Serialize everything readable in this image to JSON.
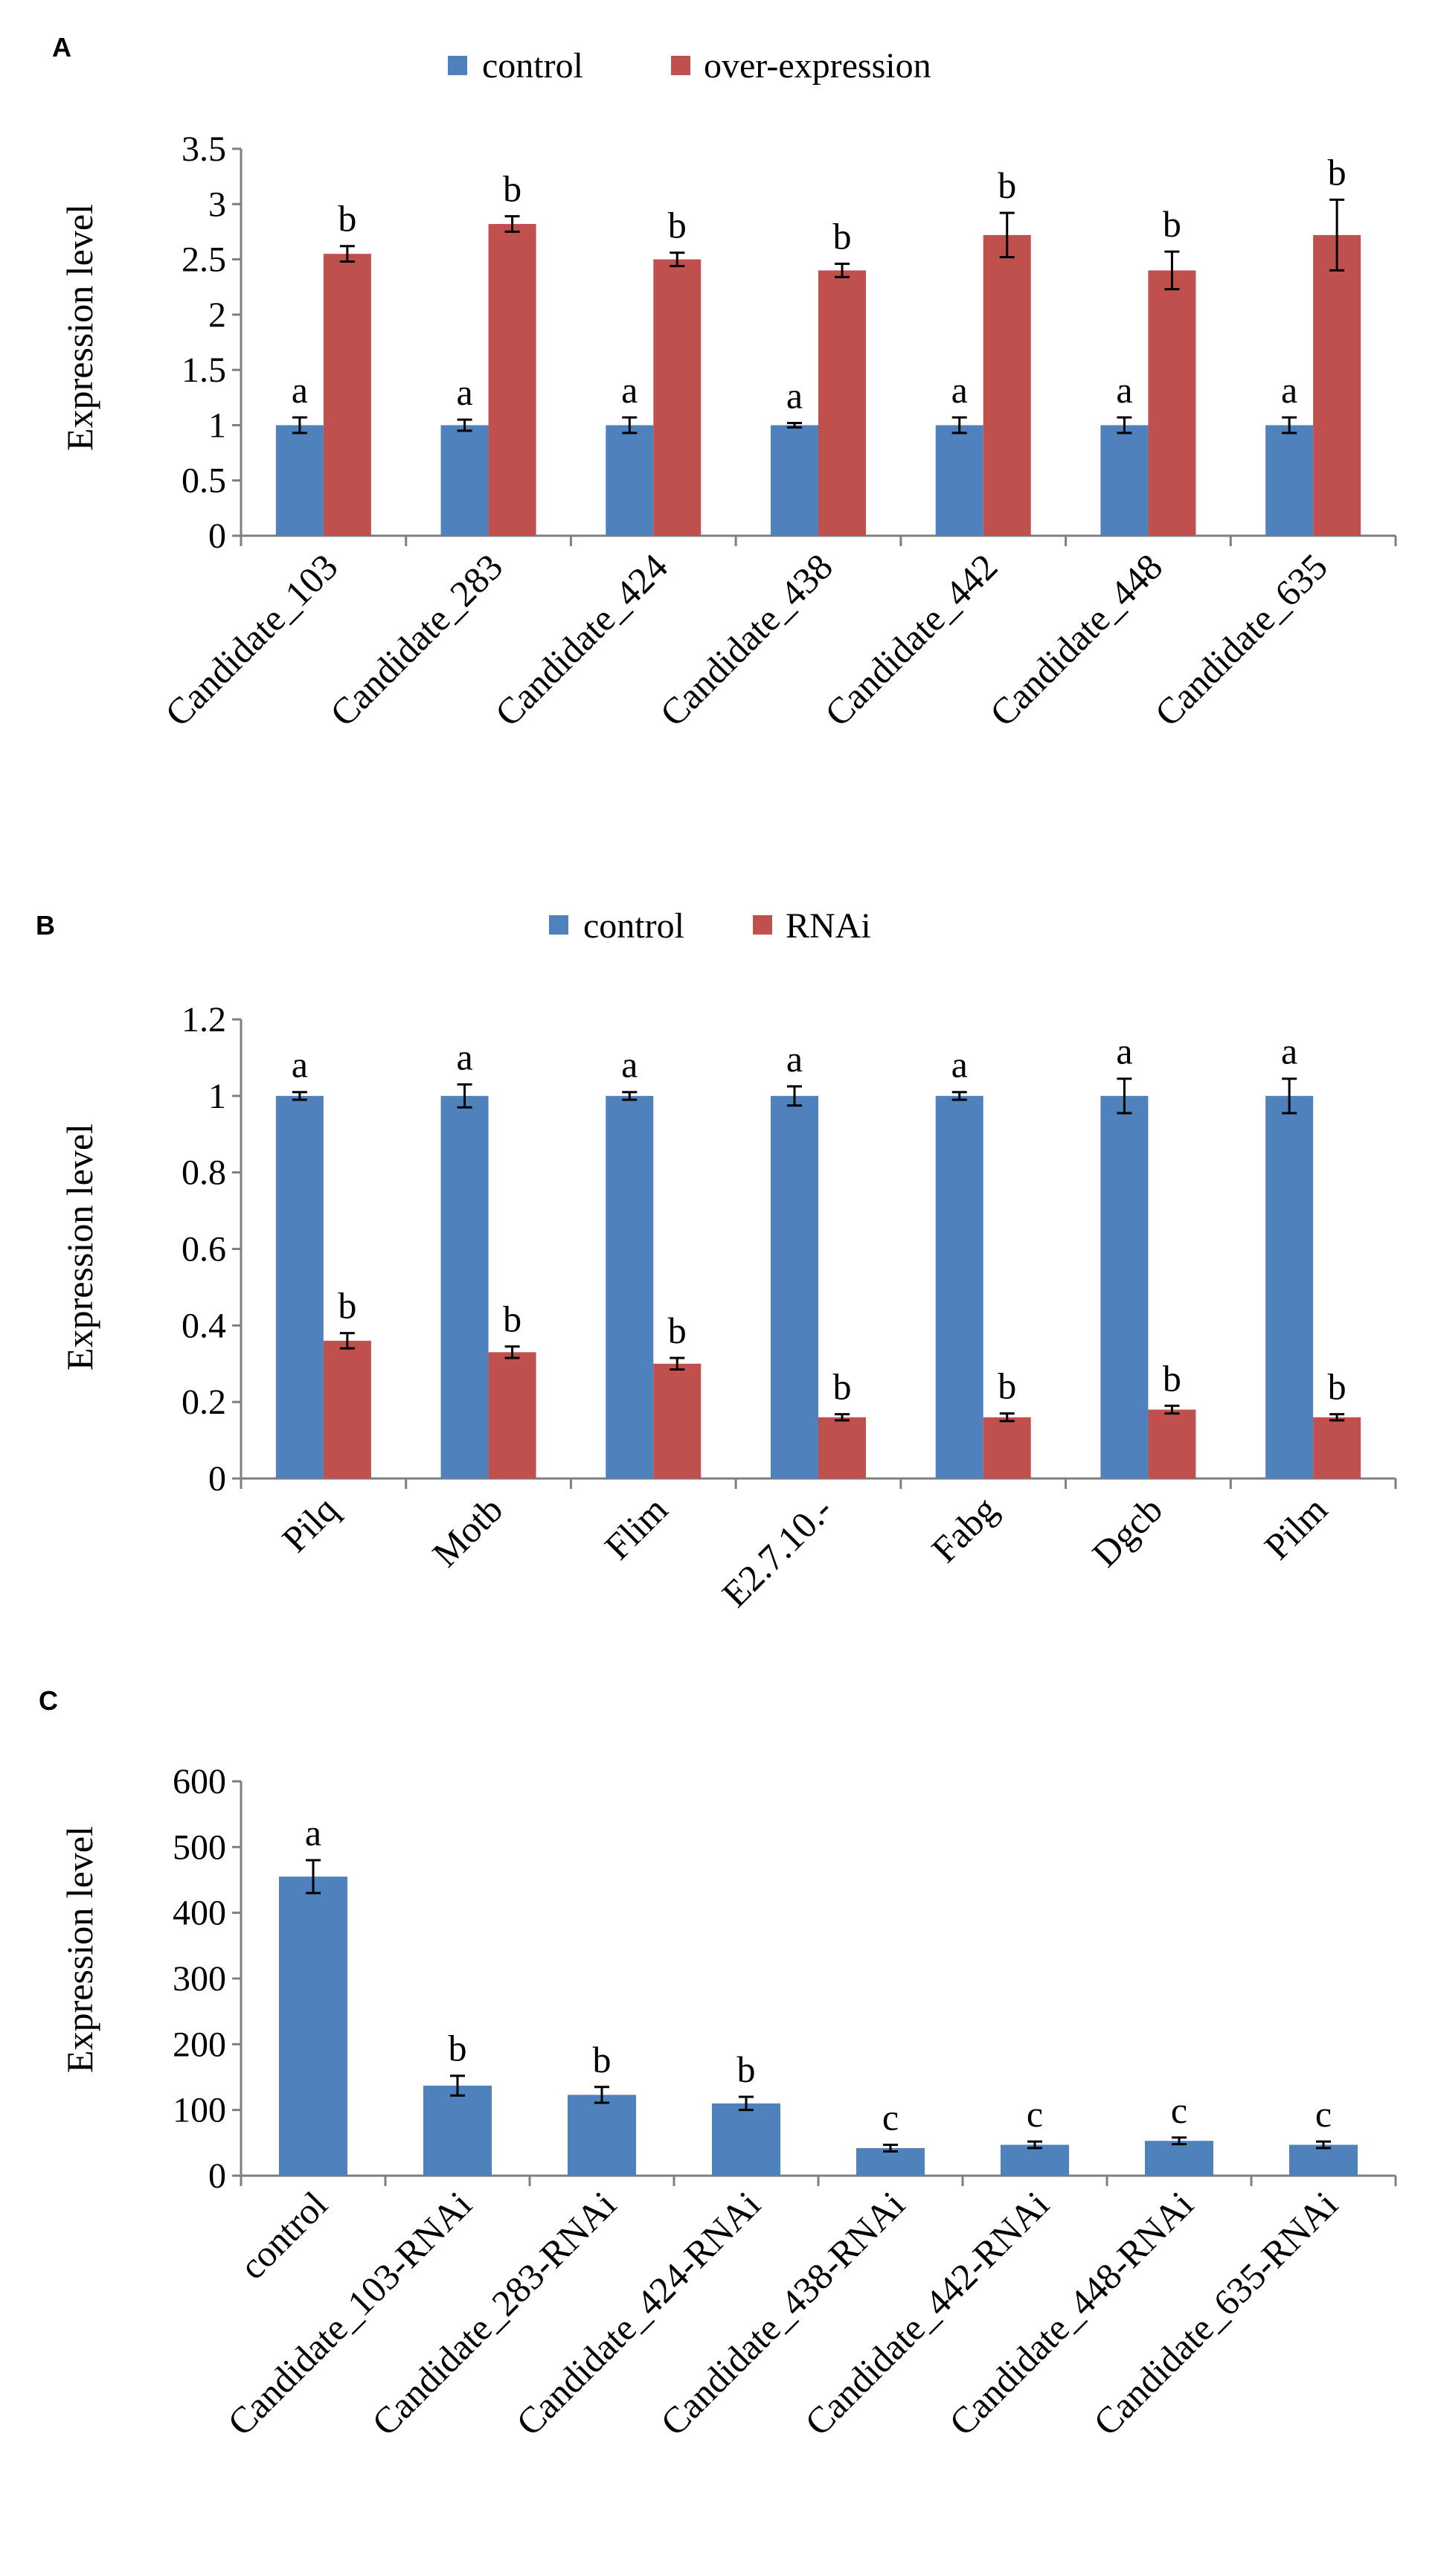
{
  "colors": {
    "control": "#4f81bd",
    "treatment": "#c0504d",
    "axis": "#7f7f7f",
    "text": "#000000"
  },
  "chart_data": [
    {
      "panel": "A",
      "type": "bar",
      "ylabel": "Expression level",
      "ylim": [
        0,
        3.5
      ],
      "yticks": [
        "0",
        "0.5",
        "1",
        "1.5",
        "2",
        "2.5",
        "3",
        "3.5"
      ],
      "categories": [
        "Candidate_103",
        "Candidate_283",
        "Candidate_424",
        "Candidate_438",
        "Candidate_442",
        "Candidate_448",
        "Candidate_635"
      ],
      "legend_position": "top-center",
      "series": [
        {
          "name": "control",
          "color": "#4f81bd",
          "values": [
            1.0,
            1.0,
            1.0,
            1.0,
            1.0,
            1.0,
            1.0
          ],
          "errors": [
            0.07,
            0.05,
            0.07,
            0.02,
            0.07,
            0.07,
            0.07
          ],
          "labels": [
            "a",
            "a",
            "a",
            "a",
            "a",
            "a",
            "a"
          ]
        },
        {
          "name": "over-expression",
          "color": "#c0504d",
          "values": [
            2.55,
            2.82,
            2.5,
            2.4,
            2.72,
            2.4,
            2.72
          ],
          "errors": [
            0.07,
            0.07,
            0.06,
            0.06,
            0.2,
            0.17,
            0.32
          ],
          "labels": [
            "b",
            "b",
            "b",
            "b",
            "b",
            "b",
            "b"
          ]
        }
      ]
    },
    {
      "panel": "B",
      "type": "bar",
      "ylabel": "Expression level",
      "ylim": [
        0,
        1.2
      ],
      "yticks": [
        "0",
        "0.2",
        "0.4",
        "0.6",
        "0.8",
        "1",
        "1.2"
      ],
      "categories": [
        "Pilq",
        "Motb",
        "Flim",
        "E2.7.10.-",
        "Fabg",
        "Dgcb",
        "Pilm"
      ],
      "legend_position": "top-center",
      "series": [
        {
          "name": "control",
          "color": "#4f81bd",
          "values": [
            1.0,
            1.0,
            1.0,
            1.0,
            1.0,
            1.0,
            1.0
          ],
          "errors": [
            0.01,
            0.03,
            0.01,
            0.025,
            0.01,
            0.045,
            0.045
          ],
          "labels": [
            "a",
            "a",
            "a",
            "a",
            "a",
            "a",
            "a"
          ]
        },
        {
          "name": "RNAi",
          "color": "#c0504d",
          "values": [
            0.36,
            0.33,
            0.3,
            0.16,
            0.16,
            0.18,
            0.16
          ],
          "errors": [
            0.02,
            0.015,
            0.015,
            0.008,
            0.01,
            0.01,
            0.008
          ],
          "labels": [
            "b",
            "b",
            "b",
            "b",
            "b",
            "b",
            "b"
          ]
        }
      ]
    },
    {
      "panel": "C",
      "type": "bar",
      "ylabel": "Expression level",
      "ylim": [
        0,
        600
      ],
      "yticks": [
        "0",
        "100",
        "200",
        "300",
        "400",
        "500",
        "600"
      ],
      "categories": [
        "control",
        "Candidate_103-RNAi",
        "Candidate_283-RNAi",
        "Candidate_424-RNAi",
        "Candidate_438-RNAi",
        "Candidate_442-RNAi",
        "Candidate_448-RNAi",
        "Candidate_635-RNAi"
      ],
      "series": [
        {
          "name": "expression",
          "color": "#4f81bd",
          "values": [
            455,
            137,
            123,
            110,
            42,
            47,
            53,
            47
          ],
          "errors": [
            25,
            15,
            12,
            10,
            5,
            5,
            5,
            5
          ],
          "labels": [
            "a",
            "b",
            "b",
            "b",
            "c",
            "c",
            "c",
            "c"
          ]
        }
      ]
    }
  ]
}
